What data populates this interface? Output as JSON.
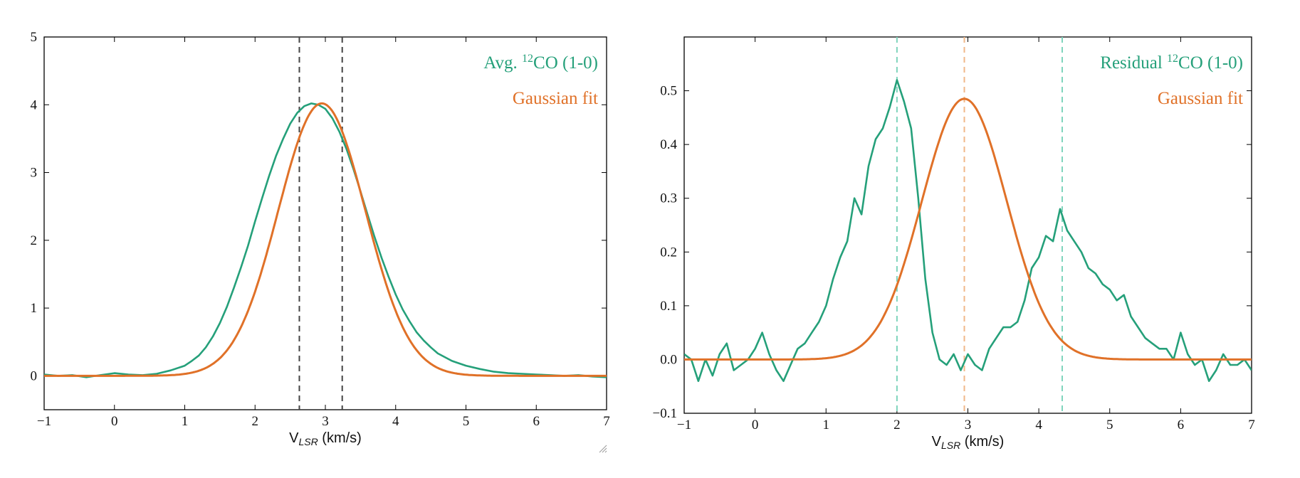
{
  "colors": {
    "observed": "#25a07a",
    "fit": "#e07128",
    "dashed_left": "#444444",
    "dashed_right_outer": "#7fd4bc",
    "dashed_right_center": "#f0b888"
  },
  "chart_data": [
    {
      "type": "line",
      "xlabel": "V_LSR (km/s)",
      "xlabel_main": "V",
      "xlabel_sub": "LSR",
      "xlabel_unit": " (km/s)",
      "xlim": [
        -1,
        7
      ],
      "ylim": [
        -0.5,
        5
      ],
      "xticks": [
        -1,
        0,
        1,
        2,
        3,
        4,
        5,
        6,
        7
      ],
      "xtick_labels": [
        "−1",
        "0",
        "1",
        "2",
        "3",
        "4",
        "5",
        "6",
        "7"
      ],
      "yticks": [
        0,
        1,
        2,
        3,
        4,
        5
      ],
      "ytick_labels": [
        "0",
        "1",
        "2",
        "3",
        "4",
        "5"
      ],
      "grid": false,
      "legend_position": "top-right",
      "legend": [
        {
          "prefix": "Avg. ",
          "sup": "12",
          "suffix": "CO (1-0)",
          "color": "#25a07a"
        },
        {
          "prefix": "Gaussian fit",
          "sup": "",
          "suffix": "",
          "color": "#e07128"
        }
      ],
      "vlines": [
        {
          "x": 2.63,
          "color": "#444444"
        },
        {
          "x": 3.24,
          "color": "#444444"
        }
      ],
      "series": [
        {
          "color": "#25a07a",
          "x": [
            -1.0,
            -0.8,
            -0.6,
            -0.4,
            -0.2,
            0.0,
            0.2,
            0.4,
            0.6,
            0.8,
            1.0,
            1.1,
            1.2,
            1.3,
            1.4,
            1.5,
            1.6,
            1.7,
            1.8,
            1.9,
            2.0,
            2.1,
            2.2,
            2.3,
            2.4,
            2.5,
            2.6,
            2.7,
            2.8,
            2.9,
            3.0,
            3.1,
            3.2,
            3.3,
            3.4,
            3.5,
            3.6,
            3.7,
            3.8,
            3.9,
            4.0,
            4.1,
            4.2,
            4.3,
            4.4,
            4.5,
            4.6,
            4.8,
            5.0,
            5.2,
            5.4,
            5.6,
            5.8,
            6.0,
            6.2,
            6.4,
            6.6,
            6.8,
            7.0
          ],
          "y": [
            0.02,
            0.0,
            0.01,
            -0.02,
            0.01,
            0.04,
            0.02,
            0.01,
            0.03,
            0.08,
            0.15,
            0.22,
            0.3,
            0.42,
            0.58,
            0.78,
            1.02,
            1.3,
            1.6,
            1.92,
            2.28,
            2.62,
            2.95,
            3.25,
            3.5,
            3.72,
            3.88,
            3.98,
            4.02,
            4.0,
            3.94,
            3.8,
            3.6,
            3.35,
            3.05,
            2.72,
            2.38,
            2.05,
            1.74,
            1.46,
            1.2,
            0.98,
            0.8,
            0.64,
            0.52,
            0.42,
            0.33,
            0.22,
            0.15,
            0.1,
            0.06,
            0.04,
            0.03,
            0.02,
            0.01,
            0.0,
            0.01,
            -0.01,
            -0.02
          ]
        },
        {
          "color": "#e07128",
          "gaussian": {
            "amplitude": 4.02,
            "center": 2.95,
            "sigma": 0.62
          }
        }
      ]
    },
    {
      "type": "line",
      "xlabel": "V_LSR (km/s)",
      "xlabel_main": "V",
      "xlabel_sub": "LSR",
      "xlabel_unit": " (km/s)",
      "xlim": [
        -1,
        7
      ],
      "ylim": [
        -0.1,
        0.6
      ],
      "xticks": [
        -1,
        0,
        1,
        2,
        3,
        4,
        5,
        6,
        7
      ],
      "xtick_labels": [
        "−1",
        "0",
        "1",
        "2",
        "3",
        "4",
        "5",
        "6",
        "7"
      ],
      "yticks": [
        -0.1,
        0.0,
        0.1,
        0.2,
        0.3,
        0.4,
        0.5
      ],
      "ytick_labels": [
        "−0.1",
        "0.0",
        "0.1",
        "0.2",
        "0.3",
        "0.4",
        "0.5"
      ],
      "grid": false,
      "legend_position": "top-right",
      "legend": [
        {
          "prefix": "Residual ",
          "sup": "12",
          "suffix": "CO (1-0)",
          "color": "#25a07a"
        },
        {
          "prefix": "Gaussian fit",
          "sup": "",
          "suffix": "",
          "color": "#e07128"
        }
      ],
      "vlines": [
        {
          "x": 2.0,
          "color": "#7fd4bc"
        },
        {
          "x": 2.95,
          "color": "#f0b888"
        },
        {
          "x": 4.33,
          "color": "#7fd4bc"
        }
      ],
      "series": [
        {
          "color": "#25a07a",
          "x": [
            -1.0,
            -0.9,
            -0.8,
            -0.7,
            -0.6,
            -0.5,
            -0.4,
            -0.3,
            -0.2,
            -0.1,
            0.0,
            0.1,
            0.2,
            0.3,
            0.4,
            0.5,
            0.6,
            0.7,
            0.8,
            0.9,
            1.0,
            1.1,
            1.2,
            1.3,
            1.4,
            1.5,
            1.6,
            1.7,
            1.8,
            1.9,
            2.0,
            2.1,
            2.2,
            2.3,
            2.4,
            2.5,
            2.6,
            2.7,
            2.8,
            2.9,
            3.0,
            3.1,
            3.2,
            3.3,
            3.4,
            3.5,
            3.6,
            3.7,
            3.8,
            3.9,
            4.0,
            4.1,
            4.2,
            4.3,
            4.4,
            4.5,
            4.6,
            4.7,
            4.8,
            4.9,
            5.0,
            5.1,
            5.2,
            5.3,
            5.4,
            5.5,
            5.6,
            5.7,
            5.8,
            5.9,
            6.0,
            6.1,
            6.2,
            6.3,
            6.4,
            6.5,
            6.6,
            6.7,
            6.8,
            6.9,
            7.0
          ],
          "y": [
            0.01,
            0.0,
            -0.04,
            0.0,
            -0.03,
            0.01,
            0.03,
            -0.02,
            -0.01,
            0.0,
            0.02,
            0.05,
            0.01,
            -0.02,
            -0.04,
            -0.01,
            0.02,
            0.03,
            0.05,
            0.07,
            0.1,
            0.15,
            0.19,
            0.22,
            0.3,
            0.27,
            0.36,
            0.41,
            0.43,
            0.47,
            0.52,
            0.48,
            0.43,
            0.3,
            0.15,
            0.05,
            0.0,
            -0.01,
            0.01,
            -0.02,
            0.01,
            -0.01,
            -0.02,
            0.02,
            0.04,
            0.06,
            0.06,
            0.07,
            0.11,
            0.17,
            0.19,
            0.23,
            0.22,
            0.28,
            0.24,
            0.22,
            0.2,
            0.17,
            0.16,
            0.14,
            0.13,
            0.11,
            0.12,
            0.08,
            0.06,
            0.04,
            0.03,
            0.02,
            0.02,
            0.0,
            0.05,
            0.01,
            -0.01,
            0.0,
            -0.04,
            -0.02,
            0.01,
            -0.01,
            -0.01,
            0.0,
            -0.02
          ]
        },
        {
          "color": "#e07128",
          "gaussian": {
            "amplitude": 0.485,
            "center": 2.95,
            "sigma": 0.6
          }
        }
      ]
    }
  ]
}
